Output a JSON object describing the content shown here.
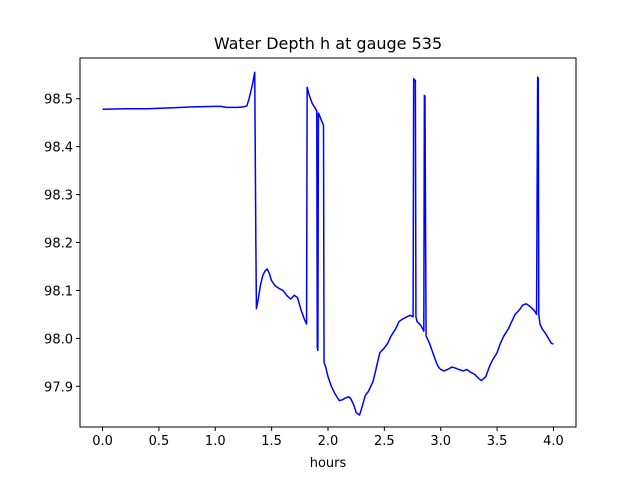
{
  "chart_data": {
    "type": "line",
    "title": "Water Depth h at gauge 535",
    "xlabel": "hours",
    "ylabel": "",
    "xlim": [
      -0.2,
      4.2
    ],
    "ylim": [
      97.815,
      98.585
    ],
    "xticks": [
      0.0,
      0.5,
      1.0,
      1.5,
      2.0,
      2.5,
      3.0,
      3.5,
      4.0
    ],
    "xtick_labels": [
      "0.0",
      "0.5",
      "1.0",
      "1.5",
      "2.0",
      "2.5",
      "3.0",
      "3.5",
      "4.0"
    ],
    "yticks": [
      97.9,
      98.0,
      98.1,
      98.2,
      98.3,
      98.4,
      98.5
    ],
    "ytick_labels": [
      "97.9",
      "98.0",
      "98.1",
      "98.2",
      "98.3",
      "98.4",
      "98.5"
    ],
    "grid": false,
    "series": [
      {
        "color": "#0000ff",
        "x": [
          0.0,
          0.2,
          0.4,
          0.6,
          0.8,
          1.0,
          1.05,
          1.1,
          1.2,
          1.25,
          1.28,
          1.3,
          1.33,
          1.35,
          1.36,
          1.365,
          1.38,
          1.4,
          1.42,
          1.44,
          1.46,
          1.48,
          1.5,
          1.53,
          1.56,
          1.6,
          1.64,
          1.67,
          1.7,
          1.73,
          1.76,
          1.79,
          1.81,
          1.815,
          1.83,
          1.86,
          1.9,
          1.905,
          1.91,
          1.915,
          1.92,
          1.95,
          1.96,
          1.965,
          1.98,
          2.0,
          2.03,
          2.06,
          2.1,
          2.13,
          2.15,
          2.18,
          2.2,
          2.23,
          2.25,
          2.28,
          2.3,
          2.33,
          2.36,
          2.4,
          2.43,
          2.46,
          2.5,
          2.53,
          2.56,
          2.6,
          2.63,
          2.66,
          2.7,
          2.73,
          2.755,
          2.76,
          2.765,
          2.775,
          2.78,
          2.79,
          2.82,
          2.84,
          2.85,
          2.855,
          2.86,
          2.87,
          2.9,
          2.93,
          2.96,
          2.98,
          3.0,
          3.03,
          3.06,
          3.1,
          3.13,
          3.16,
          3.2,
          3.23,
          3.26,
          3.3,
          3.33,
          3.36,
          3.4,
          3.43,
          3.46,
          3.5,
          3.53,
          3.56,
          3.6,
          3.63,
          3.66,
          3.7,
          3.73,
          3.76,
          3.8,
          3.83,
          3.85,
          3.86,
          3.865,
          3.87,
          3.875,
          3.88,
          3.9,
          3.93,
          3.96,
          3.98,
          4.0
        ],
        "y": [
          98.478,
          98.479,
          98.479,
          98.481,
          98.483,
          98.484,
          98.484,
          98.482,
          98.482,
          98.483,
          98.485,
          98.5,
          98.53,
          98.555,
          98.2,
          98.062,
          98.08,
          98.11,
          98.13,
          98.14,
          98.145,
          98.135,
          98.12,
          98.11,
          98.105,
          98.1,
          98.088,
          98.082,
          98.09,
          98.085,
          98.06,
          98.04,
          98.03,
          98.524,
          98.51,
          98.49,
          98.475,
          97.98,
          97.975,
          98.47,
          98.468,
          98.45,
          98.445,
          97.95,
          97.94,
          97.92,
          97.9,
          97.885,
          97.87,
          97.872,
          97.875,
          97.878,
          97.875,
          97.86,
          97.845,
          97.84,
          97.855,
          97.88,
          97.89,
          97.91,
          97.94,
          97.97,
          97.98,
          97.99,
          98.005,
          98.02,
          98.035,
          98.04,
          98.045,
          98.048,
          98.045,
          98.542,
          98.54,
          98.538,
          98.045,
          98.035,
          98.028,
          98.02,
          98.015,
          98.507,
          98.505,
          98.005,
          97.99,
          97.97,
          97.95,
          97.94,
          97.935,
          97.932,
          97.935,
          97.94,
          97.938,
          97.935,
          97.932,
          97.935,
          97.93,
          97.925,
          97.918,
          97.912,
          97.92,
          97.94,
          97.955,
          97.97,
          97.99,
          98.005,
          98.02,
          98.035,
          98.05,
          98.06,
          98.07,
          98.072,
          98.065,
          98.058,
          98.05,
          98.545,
          98.543,
          98.05,
          98.04,
          98.03,
          98.02,
          98.01,
          97.998,
          97.99,
          97.988
        ]
      }
    ]
  }
}
